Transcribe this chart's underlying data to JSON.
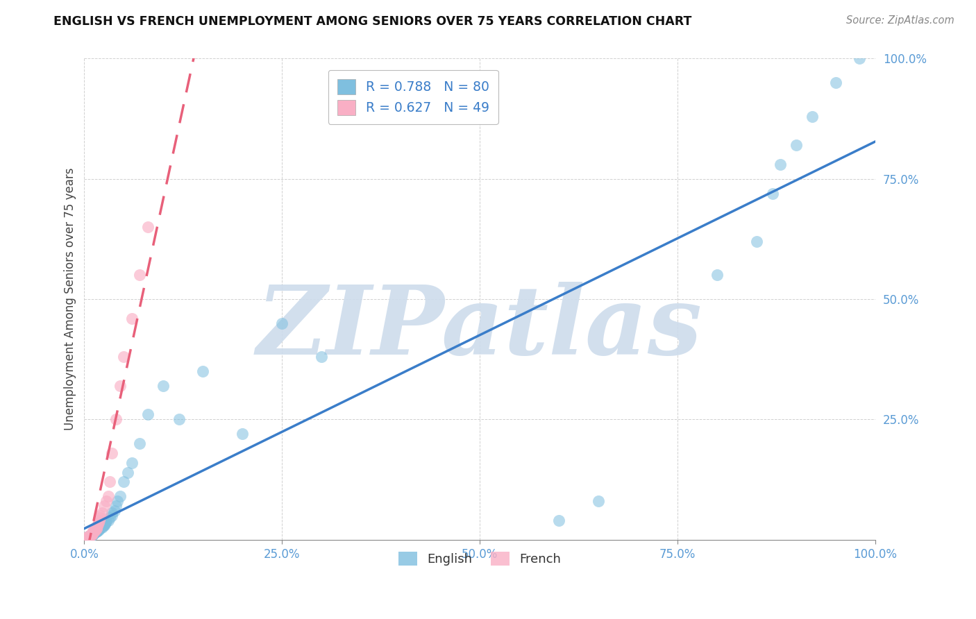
{
  "title": "ENGLISH VS FRENCH UNEMPLOYMENT AMONG SENIORS OVER 75 YEARS CORRELATION CHART",
  "source": "Source: ZipAtlas.com",
  "ylabel": "Unemployment Among Seniors over 75 years",
  "xlim": [
    0.0,
    1.0
  ],
  "ylim": [
    0.0,
    1.0
  ],
  "x_ticks": [
    0.0,
    0.25,
    0.5,
    0.75,
    1.0
  ],
  "x_tick_labels": [
    "0.0%",
    "25.0%",
    "50.0%",
    "75.0%",
    "100.0%"
  ],
  "y_ticks": [
    0.25,
    0.5,
    0.75,
    1.0
  ],
  "y_tick_labels": [
    "25.0%",
    "50.0%",
    "75.0%",
    "100.0%"
  ],
  "english_R": 0.788,
  "english_N": 80,
  "french_R": 0.627,
  "french_N": 49,
  "english_color": "#7fbfdf",
  "french_color": "#f9afc5",
  "english_line_color": "#3a7dc9",
  "french_line_color": "#e8607a",
  "watermark": "ZIPatlas",
  "watermark_color": "#cddcec",
  "legend_text_color": "#3a7dc9",
  "tick_color": "#5a9bd5",
  "grid_color": "#d0d0d0",
  "title_color": "#111111",
  "source_color": "#888888",
  "english_x": [
    0.0,
    0.0,
    0.0,
    0.0,
    0.0,
    0.0,
    0.0,
    0.002,
    0.002,
    0.003,
    0.003,
    0.004,
    0.004,
    0.005,
    0.005,
    0.005,
    0.006,
    0.006,
    0.007,
    0.007,
    0.008,
    0.008,
    0.009,
    0.009,
    0.01,
    0.01,
    0.01,
    0.01,
    0.011,
    0.012,
    0.012,
    0.013,
    0.013,
    0.014,
    0.015,
    0.015,
    0.015,
    0.016,
    0.017,
    0.018,
    0.018,
    0.019,
    0.02,
    0.021,
    0.022,
    0.023,
    0.024,
    0.025,
    0.026,
    0.027,
    0.028,
    0.03,
    0.032,
    0.035,
    0.035,
    0.038,
    0.04,
    0.042,
    0.045,
    0.05,
    0.055,
    0.06,
    0.07,
    0.08,
    0.1,
    0.12,
    0.15,
    0.2,
    0.25,
    0.3,
    0.6,
    0.65,
    0.8,
    0.85,
    0.87,
    0.88,
    0.9,
    0.92,
    0.95,
    0.98
  ],
  "english_y": [
    0.0,
    0.0,
    0.0,
    0.0,
    0.0,
    0.0,
    0.002,
    0.002,
    0.003,
    0.003,
    0.004,
    0.004,
    0.005,
    0.005,
    0.005,
    0.006,
    0.006,
    0.007,
    0.007,
    0.008,
    0.008,
    0.009,
    0.009,
    0.01,
    0.01,
    0.01,
    0.011,
    0.012,
    0.012,
    0.013,
    0.014,
    0.014,
    0.015,
    0.016,
    0.016,
    0.017,
    0.018,
    0.018,
    0.02,
    0.02,
    0.022,
    0.023,
    0.024,
    0.025,
    0.026,
    0.028,
    0.03,
    0.03,
    0.032,
    0.035,
    0.038,
    0.04,
    0.045,
    0.05,
    0.055,
    0.06,
    0.07,
    0.08,
    0.09,
    0.12,
    0.14,
    0.16,
    0.2,
    0.26,
    0.32,
    0.25,
    0.35,
    0.22,
    0.45,
    0.38,
    0.04,
    0.08,
    0.55,
    0.62,
    0.72,
    0.78,
    0.82,
    0.88,
    0.95,
    1.0
  ],
  "french_x": [
    0.0,
    0.0,
    0.0,
    0.0,
    0.0,
    0.0,
    0.001,
    0.001,
    0.002,
    0.002,
    0.003,
    0.003,
    0.004,
    0.004,
    0.005,
    0.005,
    0.006,
    0.006,
    0.007,
    0.008,
    0.008,
    0.009,
    0.01,
    0.01,
    0.01,
    0.011,
    0.012,
    0.013,
    0.014,
    0.015,
    0.015,
    0.016,
    0.017,
    0.018,
    0.019,
    0.02,
    0.02,
    0.022,
    0.025,
    0.028,
    0.03,
    0.032,
    0.035,
    0.04,
    0.045,
    0.05,
    0.06,
    0.07,
    0.08
  ],
  "french_y": [
    0.0,
    0.0,
    0.0,
    0.0,
    0.0,
    0.001,
    0.001,
    0.002,
    0.002,
    0.003,
    0.003,
    0.004,
    0.004,
    0.005,
    0.005,
    0.006,
    0.006,
    0.007,
    0.008,
    0.009,
    0.01,
    0.01,
    0.012,
    0.013,
    0.015,
    0.016,
    0.017,
    0.018,
    0.02,
    0.022,
    0.024,
    0.028,
    0.032,
    0.036,
    0.04,
    0.045,
    0.05,
    0.055,
    0.07,
    0.08,
    0.09,
    0.12,
    0.18,
    0.25,
    0.32,
    0.38,
    0.46,
    0.55,
    0.65
  ]
}
